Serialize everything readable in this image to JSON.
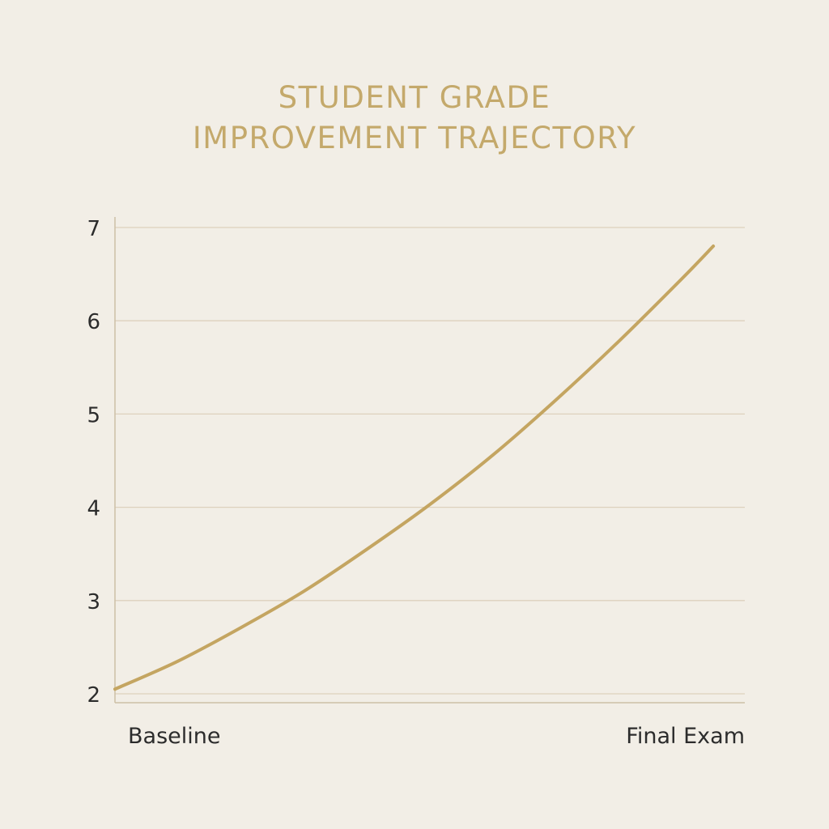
{
  "chart_data": {
    "type": "line",
    "title_lines": [
      "STUDENT GRADE",
      "IMPROVEMENT TRAJECTORY"
    ],
    "xlabel": "",
    "ylabel": "",
    "categories": [
      "Baseline",
      "Final Exam"
    ],
    "ylim": [
      2,
      7
    ],
    "yticks": [
      "2",
      "3",
      "4",
      "5",
      "6",
      "7"
    ],
    "grid": true,
    "series": [
      {
        "values": [
          2.05,
          2.35,
          2.71,
          3.1,
          3.55,
          4.03,
          4.56,
          5.15,
          5.78,
          6.45,
          6.8
        ],
        "x": [
          0,
          0.1,
          0.2,
          0.3,
          0.4,
          0.5,
          0.6,
          0.7,
          0.8,
          0.9,
          0.95
        ],
        "color": "#c4a561"
      }
    ],
    "colors": {
      "background": "#f2eee6",
      "title": "#c4a96b",
      "grid": "#ddd1bd",
      "axis": "#cdbfa6",
      "text": "#2c2c2c"
    }
  }
}
